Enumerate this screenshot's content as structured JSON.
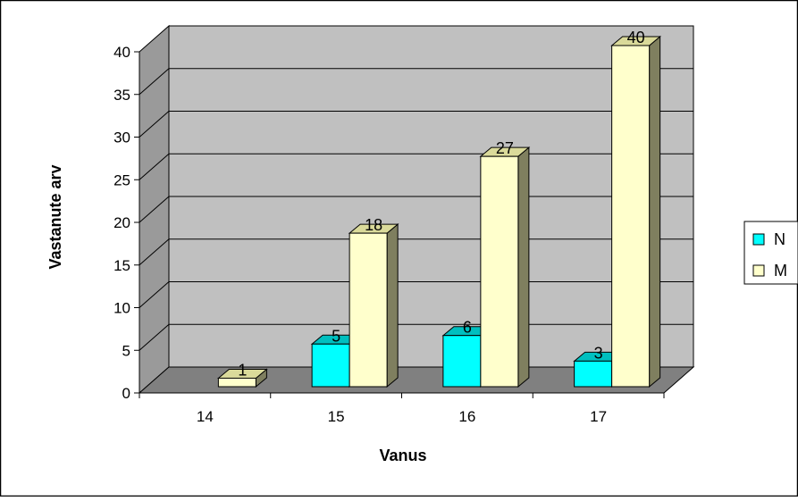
{
  "chart_data": {
    "type": "bar",
    "title": "",
    "xlabel": "Vanus",
    "ylabel": "Vastanute arv",
    "categories": [
      "14",
      "15",
      "16",
      "17"
    ],
    "series": [
      {
        "name": "N",
        "values": [
          0,
          5,
          6,
          3
        ],
        "data_labels": [
          "",
          "5",
          "6",
          "3"
        ]
      },
      {
        "name": "M",
        "values": [
          1,
          18,
          27,
          40
        ],
        "data_labels": [
          "1",
          "18",
          "27",
          "40"
        ]
      }
    ],
    "ylim": [
      0,
      40
    ],
    "yticks": [
      "0",
      "5",
      "10",
      "15",
      "20",
      "25",
      "30",
      "35",
      "40"
    ],
    "grid": true,
    "three_d": true,
    "legend_position": "right",
    "colors": {
      "N": "#00ffff",
      "M": "#ffffcc",
      "wall": "#c0c0c0",
      "floor": "#808080",
      "side_wall": "#9a9a9a",
      "M_side": "#7f7f5f",
      "M_top": "#dada9a",
      "N_side": "#008080",
      "N_top": "#00bfbf"
    }
  }
}
